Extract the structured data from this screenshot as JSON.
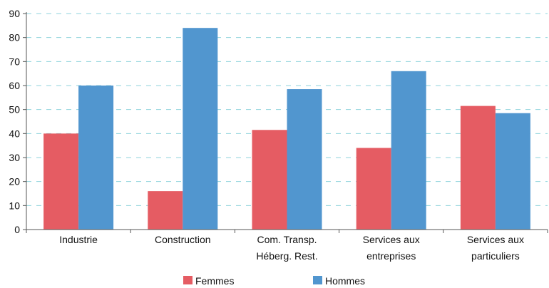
{
  "chart_data": {
    "type": "bar",
    "categories": [
      [
        "Industrie"
      ],
      [
        "Construction"
      ],
      [
        "Com. Transp.",
        "Héberg. Rest."
      ],
      [
        "Services aux",
        "entreprises"
      ],
      [
        "Services aux",
        "particuliers"
      ]
    ],
    "series": [
      {
        "name": "Femmes",
        "color": "#e55c63",
        "values": [
          40,
          16,
          41.5,
          34,
          51.5
        ]
      },
      {
        "name": "Hommes",
        "color": "#5196cf",
        "values": [
          60,
          84,
          58.5,
          66,
          48.5
        ]
      }
    ],
    "ylim": [
      0,
      90
    ],
    "yticks": [
      0,
      10,
      20,
      30,
      40,
      50,
      60,
      70,
      80,
      90
    ],
    "grid": true,
    "grid_color": "#8fd3dc",
    "legend": "bottom-center"
  }
}
